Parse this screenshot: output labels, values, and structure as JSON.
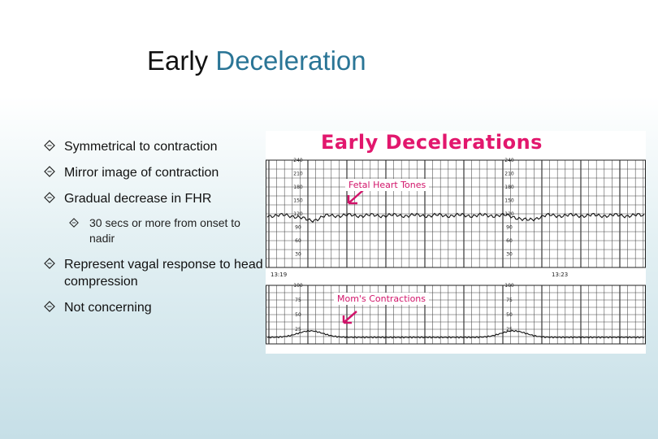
{
  "title": {
    "part1": "Early",
    "part2": "Deceleration"
  },
  "bullets": [
    {
      "text": "Symmetrical to contraction"
    },
    {
      "text": "Mirror image of contraction"
    },
    {
      "text": "Gradual decrease in FHR"
    },
    {
      "text": "30 secs or more from onset to nadir",
      "level": 2
    },
    {
      "text": "Represent vagal response to head compression"
    },
    {
      "text": "Not concerning"
    }
  ],
  "figure": {
    "title": "Early Decelerations",
    "fhr_label": "Fetal Heart Tones",
    "uc_label": "Mom's Contractions",
    "fhr_ticks": [
      "240",
      "210",
      "180",
      "150",
      "120",
      "90",
      "60",
      "30"
    ],
    "uc_ticks": [
      "100",
      "75",
      "50",
      "25"
    ],
    "time_left": "13:19",
    "time_right": "13:23"
  },
  "colors": {
    "accent": "#2a7596",
    "figure_label": "#e2176d"
  },
  "icons": {
    "bullet": "diamond-outline-icon"
  }
}
